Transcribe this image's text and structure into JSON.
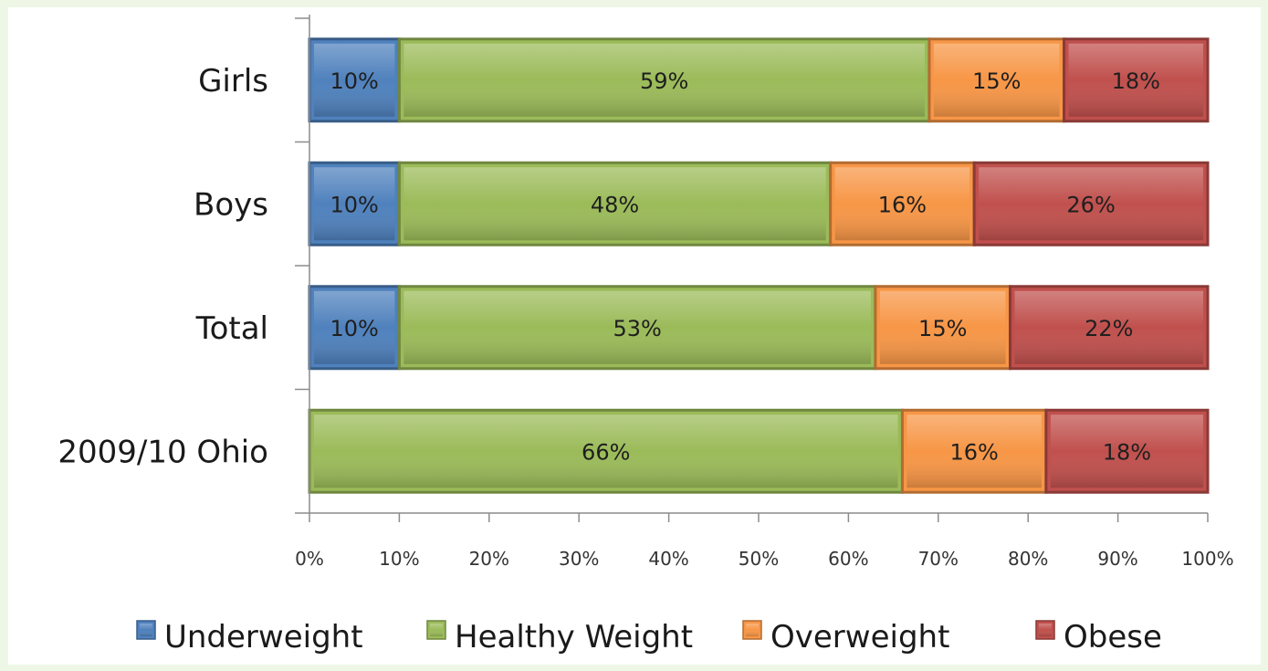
{
  "chart_data": {
    "type": "bar",
    "orientation": "horizontal",
    "stacked": true,
    "categories": [
      "Girls",
      "Boys",
      "Total",
      "2009/10 Ohio"
    ],
    "series": [
      {
        "name": "Underweight",
        "color": "#4f81bd",
        "values": [
          10,
          10,
          10,
          0
        ]
      },
      {
        "name": "Healthy Weight",
        "color": "#9bbb59",
        "values": [
          59,
          48,
          53,
          66
        ]
      },
      {
        "name": "Overweight",
        "color": "#f79646",
        "values": [
          15,
          16,
          15,
          16
        ]
      },
      {
        "name": "Obese",
        "color": "#c0504d",
        "values": [
          18,
          26,
          22,
          18
        ]
      }
    ],
    "data_labels": [
      [
        "10%",
        "59%",
        "15%",
        "18%"
      ],
      [
        "10%",
        "48%",
        "16%",
        "26%"
      ],
      [
        "10%",
        "53%",
        "15%",
        "22%"
      ],
      [
        "",
        "66%",
        "16%",
        "18%"
      ]
    ],
    "xlim": [
      0,
      100
    ],
    "x_ticks": [
      "0%",
      "10%",
      "20%",
      "30%",
      "40%",
      "50%",
      "60%",
      "70%",
      "80%",
      "90%",
      "100%"
    ],
    "grid": false,
    "legend_position": "bottom"
  }
}
